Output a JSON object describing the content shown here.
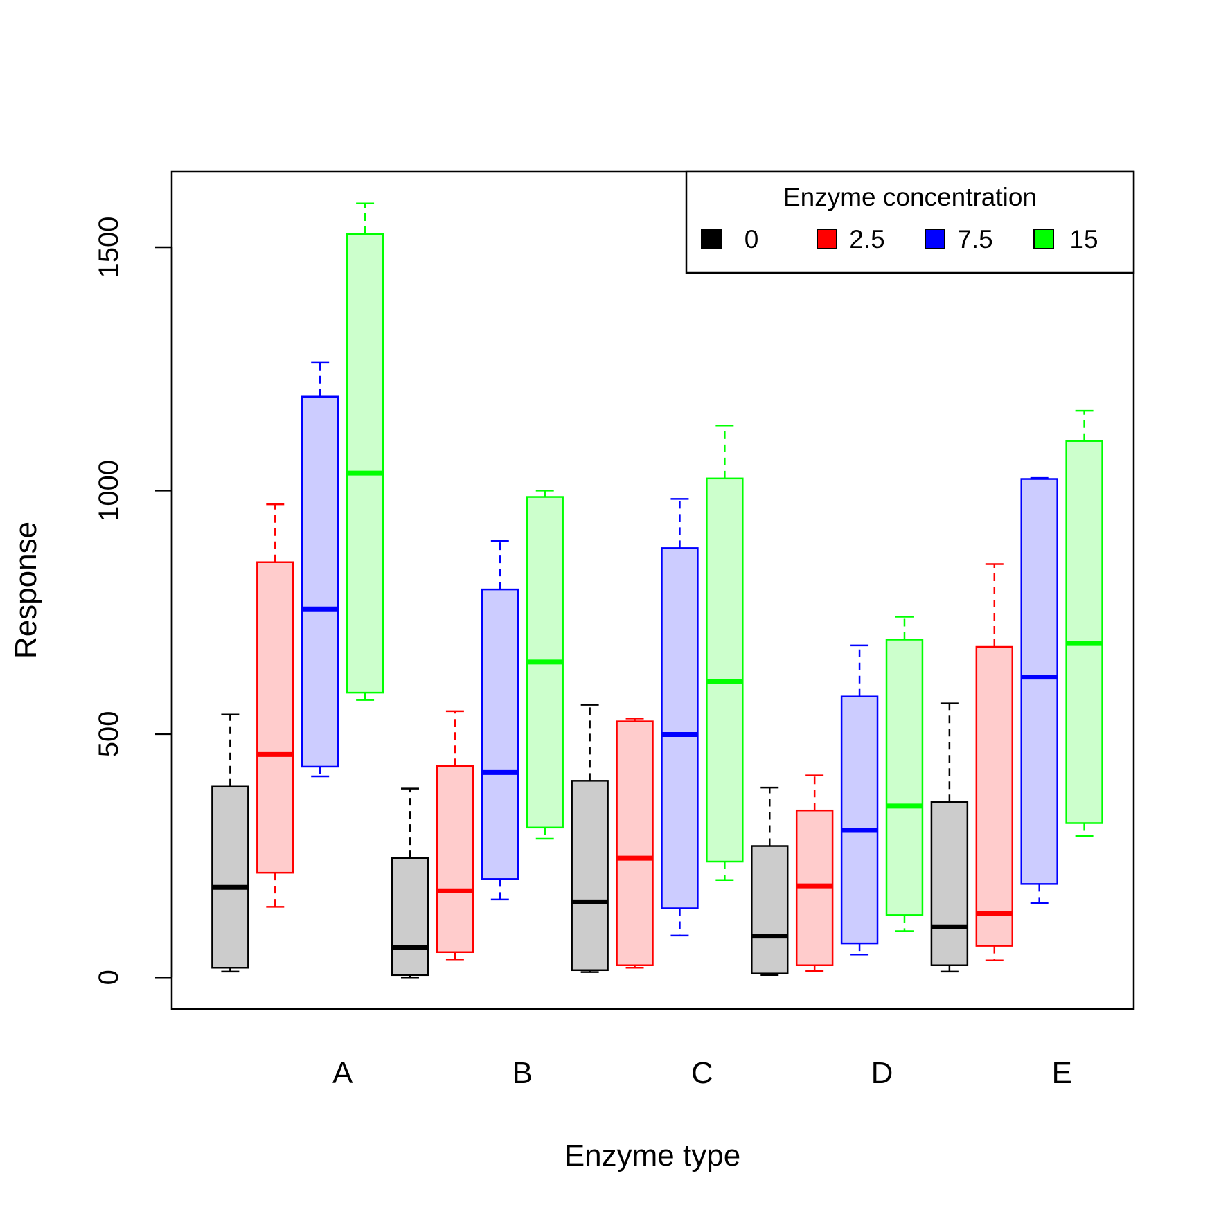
{
  "chart_data": {
    "type": "boxplot",
    "title": "",
    "xlabel": "Enzyme type",
    "ylabel": "Response",
    "ylim": [
      -65,
      1655
    ],
    "yticks": [
      0,
      500,
      1000,
      1500
    ],
    "categories": [
      "A",
      "B",
      "C",
      "D",
      "E"
    ],
    "legend": {
      "title": "Enzyme concentration",
      "position": "top-right",
      "entries": [
        {
          "label": "0",
          "color": "#000000"
        },
        {
          "label": "2.5",
          "color": "#ff0000"
        },
        {
          "label": "7.5",
          "color": "#0000ff"
        },
        {
          "label": "15",
          "color": "#00ff00"
        }
      ]
    },
    "boxes": [
      {
        "label": "",
        "group": "0",
        "stats": [
          12,
          20,
          185,
          392,
          540
        ]
      },
      {
        "label": "",
        "group": "2.5",
        "stats": [
          145,
          215,
          458,
          853,
          972
        ]
      },
      {
        "label": "",
        "group": "7.5",
        "stats": [
          413,
          433,
          757,
          1193,
          1264
        ]
      },
      {
        "label": "A",
        "group": "15",
        "stats": [
          570,
          585,
          1036,
          1527,
          1590
        ]
      },
      {
        "label": "",
        "group": "0",
        "stats": [
          0,
          5,
          62,
          245,
          388
        ]
      },
      {
        "label": "",
        "group": "2.5",
        "stats": [
          37,
          52,
          178,
          434,
          547
        ]
      },
      {
        "label": "",
        "group": "7.5",
        "stats": [
          160,
          202,
          421,
          797,
          897
        ]
      },
      {
        "label": "B",
        "group": "15",
        "stats": [
          285,
          308,
          648,
          987,
          1000
        ]
      },
      {
        "label": "",
        "group": "0",
        "stats": [
          11,
          15,
          155,
          404,
          560
        ]
      },
      {
        "label": "",
        "group": "2.5",
        "stats": [
          20,
          25,
          245,
          526,
          532
        ]
      },
      {
        "label": "",
        "group": "7.5",
        "stats": [
          86,
          142,
          499,
          882,
          983
        ]
      },
      {
        "label": "C",
        "group": "15",
        "stats": [
          200,
          238,
          608,
          1025,
          1134
        ]
      },
      {
        "label": "",
        "group": "0",
        "stats": [
          5,
          8,
          85,
          270,
          390
        ]
      },
      {
        "label": "",
        "group": "2.5",
        "stats": [
          13,
          25,
          188,
          343,
          415
        ]
      },
      {
        "label": "",
        "group": "7.5",
        "stats": [
          47,
          70,
          302,
          577,
          682
        ]
      },
      {
        "label": "D",
        "group": "15",
        "stats": [
          95,
          128,
          352,
          694,
          741
        ]
      },
      {
        "label": "",
        "group": "0",
        "stats": [
          12,
          25,
          104,
          360,
          563
        ]
      },
      {
        "label": "",
        "group": "2.5",
        "stats": [
          35,
          65,
          132,
          679,
          849
        ]
      },
      {
        "label": "",
        "group": "7.5",
        "stats": [
          153,
          192,
          617,
          1024,
          1026
        ]
      },
      {
        "label": "E",
        "group": "15",
        "stats": [
          291,
          317,
          686,
          1102,
          1164
        ]
      }
    ]
  },
  "style": {
    "stroke_colors": {
      "0": "#000000",
      "2.5": "#ff0000",
      "7.5": "#0000ff",
      "15": "#00ff00"
    },
    "fill_colors": {
      "0": "#cccccc",
      "2.5": "#ffcccc",
      "7.5": "#ccccff",
      "15": "#ccffcc"
    }
  }
}
